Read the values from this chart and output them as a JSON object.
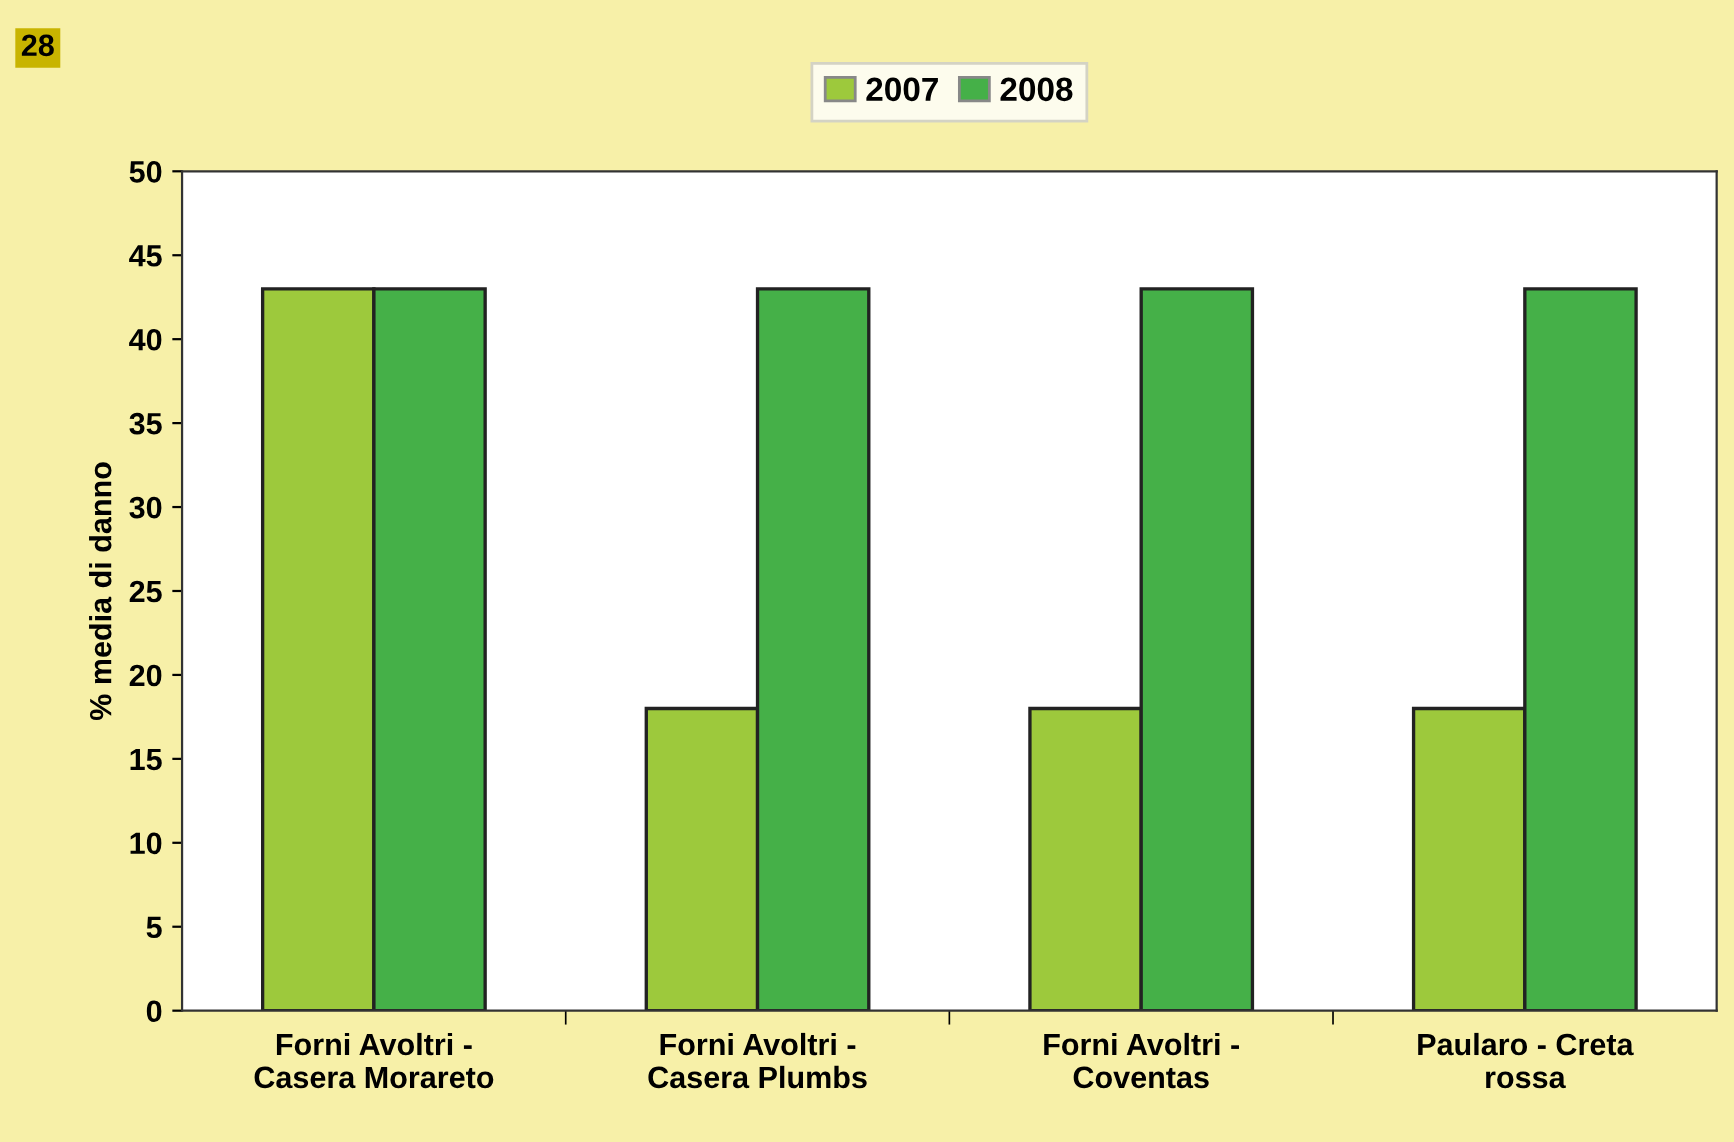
{
  "chart_data": {
    "type": "bar",
    "ylabel": "% media di danno",
    "annotations": [
      "28"
    ],
    "categories": [
      "Forni Avoltri -\nCasera Morareto",
      "Forni Avoltri -\nCasera Plumbs",
      "Forni Avoltri -\nCoventas",
      "Paularo - Creta\nrossa"
    ],
    "series": [
      {
        "name": "2007",
        "color": "#9dc93c",
        "values": [
          43,
          18,
          18,
          18
        ]
      },
      {
        "name": "2008",
        "color": "#45b048",
        "values": [
          43,
          43,
          43,
          43
        ]
      }
    ],
    "ylim": [
      0,
      50
    ],
    "yticks": [
      0,
      5,
      10,
      15,
      20,
      25,
      30,
      35,
      40,
      45,
      50
    ],
    "grid": false,
    "legend": "top"
  }
}
